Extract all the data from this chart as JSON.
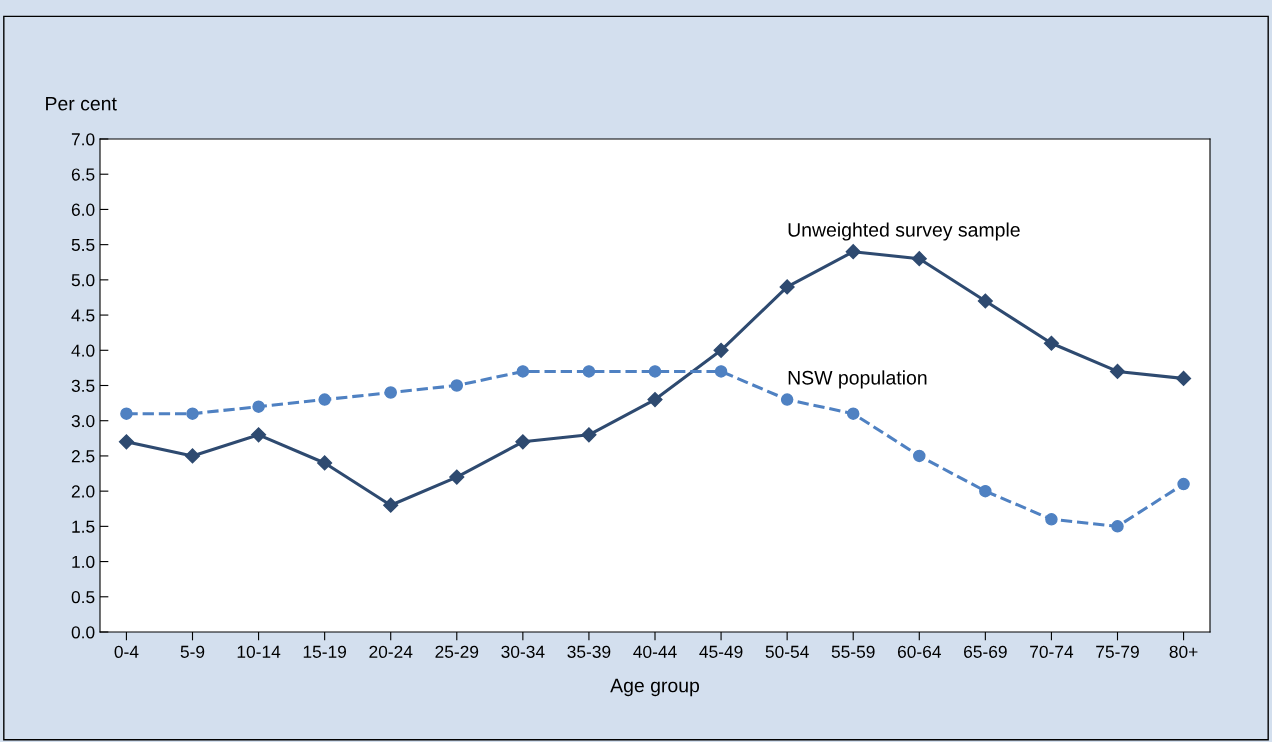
{
  "chart_data": {
    "type": "line",
    "ylabel": "Per cent",
    "xlabel": "Age group",
    "categories": [
      "0-4",
      "5-9",
      "10-14",
      "15-19",
      "20-24",
      "25-29",
      "30-34",
      "35-39",
      "40-44",
      "45-49",
      "50-54",
      "55-59",
      "60-64",
      "65-69",
      "70-74",
      "75-79",
      "80+"
    ],
    "series": [
      {
        "name": "Unweighted survey sample",
        "color": "#2e4a70",
        "marker": "diamond",
        "line_style": "solid",
        "values": [
          2.7,
          2.5,
          2.8,
          2.4,
          1.8,
          2.2,
          2.7,
          2.8,
          3.3,
          4.0,
          4.9,
          5.4,
          5.3,
          4.7,
          4.1,
          3.7,
          3.6
        ]
      },
      {
        "name": "NSW population",
        "color": "#4f81c2",
        "marker": "circle",
        "line_style": "dashed",
        "values": [
          3.1,
          3.1,
          3.2,
          3.3,
          3.4,
          3.5,
          3.7,
          3.7,
          3.7,
          3.7,
          3.3,
          3.1,
          2.5,
          2.0,
          1.6,
          1.5,
          2.1
        ]
      }
    ],
    "ylim": [
      0,
      7
    ],
    "yticks": [
      {
        "value": 0,
        "label": "0.0"
      },
      {
        "value": 0.5,
        "label": "0.5"
      },
      {
        "value": 1,
        "label": "1.0"
      },
      {
        "value": 1.5,
        "label": "1.5"
      },
      {
        "value": 2,
        "label": "2.0"
      },
      {
        "value": 2.5,
        "label": "2.5"
      },
      {
        "value": 3,
        "label": "3.0"
      },
      {
        "value": 3.5,
        "label": "3.5"
      },
      {
        "value": 4,
        "label": "4.0"
      },
      {
        "value": 4.5,
        "label": "4.5"
      },
      {
        "value": 5,
        "label": "5.0"
      },
      {
        "value": 5.5,
        "label": "5.5"
      },
      {
        "value": 6,
        "label": "6.0"
      },
      {
        "value": 6.5,
        "label": "6.5"
      },
      {
        "value": 7,
        "label": "7.0"
      }
    ],
    "grid": false,
    "legend": false
  }
}
